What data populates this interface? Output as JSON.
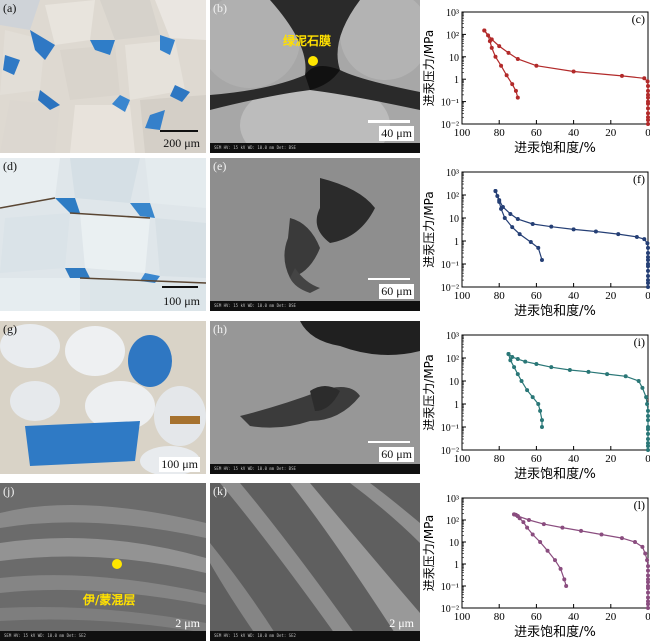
{
  "panels": {
    "a": {
      "label": "(a)",
      "scale": "200 μm"
    },
    "b": {
      "label": "(b)",
      "scale": "40 μm",
      "annotation": "绿泥石膜"
    },
    "d": {
      "label": "(d)",
      "scale": "100 μm"
    },
    "e": {
      "label": "(e)",
      "scale": "60 μm"
    },
    "g": {
      "label": "(g)",
      "scale": "100 μm"
    },
    "h": {
      "label": "(h)",
      "scale": "60 μm"
    },
    "j": {
      "label": "(j)",
      "scale": "2 μm",
      "annotation": "伊/蒙混层"
    },
    "k": {
      "label": "(k)",
      "scale": "2 μm"
    }
  },
  "chart_data": [
    {
      "id": "c",
      "panel_label": "(c)",
      "type": "line",
      "color": "#b22a2a",
      "xlabel": "进汞饱和度/%",
      "ylabel": "进汞压力/MPa",
      "xlim": [
        100,
        0
      ],
      "ylim": [
        0.01,
        1000
      ],
      "y_scale": "log",
      "x_ticks": [
        "100",
        "80",
        "60",
        "40",
        "20",
        "0"
      ],
      "y_ticks": [
        "10⁻²",
        "10⁻¹",
        "1",
        "10",
        "10²",
        "10³"
      ],
      "series": [
        {
          "values": [
            [
              0,
              0.01
            ],
            [
              0,
              0.015
            ],
            [
              0,
              0.02
            ],
            [
              0,
              0.03
            ],
            [
              0,
              0.05
            ],
            [
              0,
              0.08
            ],
            [
              0,
              0.1
            ],
            [
              0,
              0.15
            ],
            [
              0,
              0.2
            ],
            [
              0,
              0.3
            ],
            [
              0,
              0.5
            ],
            [
              0.2,
              0.8
            ],
            [
              2,
              1.1
            ],
            [
              14,
              1.4
            ],
            [
              40,
              2.2
            ],
            [
              60,
              4
            ],
            [
              70,
              8
            ],
            [
              75,
              15
            ],
            [
              80,
              30
            ],
            [
              84,
              60
            ],
            [
              88,
              150
            ]
          ]
        },
        {
          "values": [
            [
              88,
              150
            ],
            [
              86,
              90
            ],
            [
              85,
              50
            ],
            [
              84,
              25
            ],
            [
              82,
              10
            ],
            [
              79,
              4
            ],
            [
              76,
              1.5
            ],
            [
              73,
              0.6
            ],
            [
              71,
              0.3
            ],
            [
              70,
              0.15
            ]
          ]
        }
      ]
    },
    {
      "id": "f",
      "panel_label": "(f)",
      "type": "line",
      "color": "#253f75",
      "xlabel": "进汞饱和度/%",
      "ylabel": "进汞压力/MPa",
      "xlim": [
        100,
        0
      ],
      "ylim": [
        0.01,
        1000
      ],
      "y_scale": "log",
      "x_ticks": [
        "100",
        "80",
        "60",
        "40",
        "20",
        "0"
      ],
      "y_ticks": [
        "10⁻²",
        "10⁻¹",
        "1",
        "10",
        "10²",
        "10³"
      ],
      "series": [
        {
          "values": [
            [
              0,
              0.01
            ],
            [
              0,
              0.015
            ],
            [
              0,
              0.02
            ],
            [
              0,
              0.03
            ],
            [
              0,
              0.05
            ],
            [
              0,
              0.08
            ],
            [
              0,
              0.1
            ],
            [
              0,
              0.15
            ],
            [
              0,
              0.2
            ],
            [
              0,
              0.3
            ],
            [
              0,
              0.5
            ],
            [
              0.3,
              0.8
            ],
            [
              2,
              1.2
            ],
            [
              6,
              1.5
            ],
            [
              16,
              2
            ],
            [
              28,
              2.6
            ],
            [
              40,
              3.2
            ],
            [
              52,
              4.2
            ],
            [
              62,
              5.5
            ],
            [
              70,
              9
            ],
            [
              74,
              15
            ],
            [
              78,
              30
            ],
            [
              80,
              60
            ],
            [
              82,
              150
            ]
          ]
        },
        {
          "values": [
            [
              82,
              150
            ],
            [
              81,
              90
            ],
            [
              80,
              50
            ],
            [
              79,
              25
            ],
            [
              77,
              10
            ],
            [
              73,
              4
            ],
            [
              69,
              2
            ],
            [
              63,
              0.9
            ],
            [
              59,
              0.5
            ],
            [
              57,
              0.15
            ]
          ]
        }
      ]
    },
    {
      "id": "i",
      "panel_label": "(i)",
      "type": "line",
      "color": "#2a7777",
      "xlabel": "进汞饱和度/%",
      "ylabel": "进汞压力/MPa",
      "xlim": [
        100,
        0
      ],
      "ylim": [
        0.01,
        1000
      ],
      "y_scale": "log",
      "x_ticks": [
        "100",
        "80",
        "60",
        "40",
        "20",
        "0"
      ],
      "y_ticks": [
        "10⁻²",
        "10⁻¹",
        "1",
        "10",
        "10²",
        "10³"
      ],
      "series": [
        {
          "values": [
            [
              0,
              0.01
            ],
            [
              0,
              0.015
            ],
            [
              0,
              0.02
            ],
            [
              0,
              0.03
            ],
            [
              0,
              0.05
            ],
            [
              0,
              0.08
            ],
            [
              0,
              0.1
            ],
            [
              0,
              0.2
            ],
            [
              0,
              0.3
            ],
            [
              0,
              0.5
            ],
            [
              0.5,
              1
            ],
            [
              1,
              2
            ],
            [
              3,
              5
            ],
            [
              5,
              10
            ],
            [
              12,
              16
            ],
            [
              22,
              20
            ],
            [
              32,
              25
            ],
            [
              42,
              30
            ],
            [
              52,
              40
            ],
            [
              60,
              55
            ],
            [
              66,
              70
            ],
            [
              70,
              90
            ],
            [
              73,
              110
            ],
            [
              75,
              150
            ]
          ]
        },
        {
          "values": [
            [
              75,
              150
            ],
            [
              74,
              80
            ],
            [
              72,
              40
            ],
            [
              70,
              20
            ],
            [
              68,
              10
            ],
            [
              65,
              4
            ],
            [
              62,
              2
            ],
            [
              59,
              1
            ],
            [
              58,
              0.5
            ],
            [
              57,
              0.2
            ],
            [
              57,
              0.1
            ]
          ]
        }
      ]
    },
    {
      "id": "l",
      "panel_label": "(l)",
      "type": "line",
      "color": "#8a4d7f",
      "xlabel": "进汞饱和度/%",
      "ylabel": "进汞压力/MPa",
      "xlim": [
        100,
        0
      ],
      "ylim": [
        0.01,
        1000
      ],
      "y_scale": "log",
      "x_ticks": [
        "100",
        "80",
        "60",
        "40",
        "20",
        "0"
      ],
      "y_ticks": [
        "10⁻²",
        "10⁻¹",
        "1",
        "10",
        "10²",
        "10³"
      ],
      "series": [
        {
          "values": [
            [
              0,
              0.01
            ],
            [
              0,
              0.015
            ],
            [
              0,
              0.02
            ],
            [
              0,
              0.03
            ],
            [
              0,
              0.05
            ],
            [
              0,
              0.08
            ],
            [
              0,
              0.1
            ],
            [
              0,
              0.15
            ],
            [
              0,
              0.2
            ],
            [
              0,
              0.3
            ],
            [
              0,
              0.5
            ],
            [
              0,
              0.8
            ],
            [
              0.5,
              1.5
            ],
            [
              1.5,
              3
            ],
            [
              3,
              6
            ],
            [
              7,
              10
            ],
            [
              14,
              15
            ],
            [
              25,
              22
            ],
            [
              36,
              32
            ],
            [
              46,
              45
            ],
            [
              56,
              65
            ],
            [
              64,
              100
            ],
            [
              70,
              150
            ],
            [
              72,
              180
            ]
          ]
        },
        {
          "values": [
            [
              72,
              180
            ],
            [
              71,
              170
            ],
            [
              70,
              150
            ],
            [
              69,
              120
            ],
            [
              67,
              80
            ],
            [
              65,
              45
            ],
            [
              62,
              22
            ],
            [
              58,
              10
            ],
            [
              54,
              4
            ],
            [
              50,
              1.5
            ],
            [
              47,
              0.6
            ],
            [
              45,
              0.2
            ],
            [
              44,
              0.1
            ]
          ]
        }
      ]
    }
  ]
}
